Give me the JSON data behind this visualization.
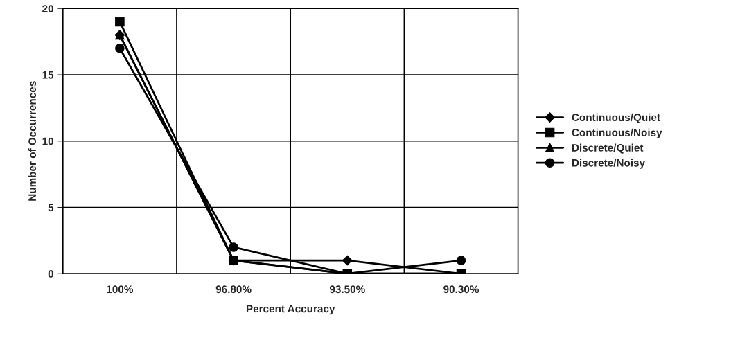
{
  "chart_data": {
    "type": "line",
    "xlabel": "Percent Accuracy",
    "ylabel": "Number of Occurrences",
    "categories": [
      "100%",
      "96.80%",
      "93.50%",
      "90.30%"
    ],
    "series": [
      {
        "name": "Continuous/Quiet",
        "color": "#000000",
        "marker": "diamond",
        "values": [
          18,
          1,
          1,
          0
        ]
      },
      {
        "name": "Continuous/Noisy",
        "color": "#000000",
        "marker": "square",
        "values": [
          19,
          1,
          0,
          0
        ]
      },
      {
        "name": "Discrete/Quiet",
        "color": "#000000",
        "marker": "triangle",
        "values": [
          18,
          1,
          0,
          0
        ]
      },
      {
        "name": "Discrete/Noisy",
        "color": "#000000",
        "marker": "circle",
        "values": [
          17,
          2,
          0,
          1
        ]
      }
    ],
    "ylim": [
      0,
      20
    ],
    "yticks": [
      0,
      5,
      10,
      15,
      20
    ],
    "grid": true,
    "legend": "right",
    "line_style": "solid"
  }
}
